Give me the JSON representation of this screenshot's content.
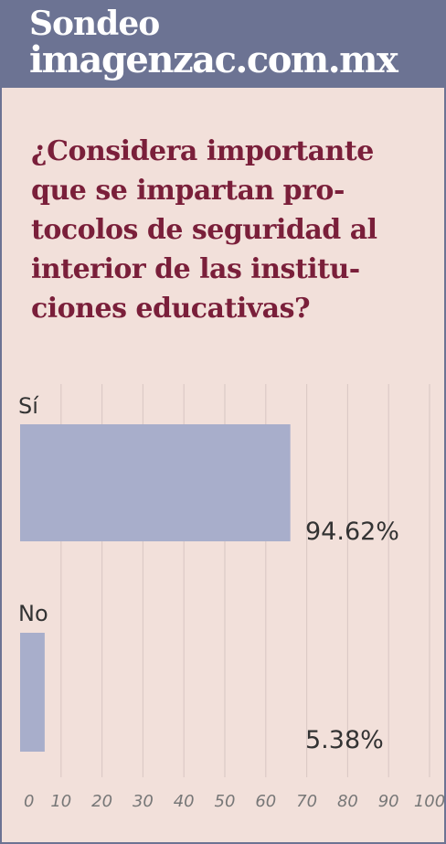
{
  "header": {
    "line1": "Sondeo",
    "line2": "imagenzac.com.mx"
  },
  "question_lines": [
    "¿Considera importante",
    "que se impartan pro-",
    "tocolos de seguridad al",
    "interior de las institu-",
    "ciones educativas?"
  ],
  "colors": {
    "header_bg": "#6c7393",
    "background": "#f2e0da",
    "question_text": "#7a1f3a",
    "bar": "#a8aecb",
    "grid": "#dccac6"
  },
  "chart_data": {
    "type": "bar",
    "orientation": "horizontal",
    "categories": [
      "Sí",
      "No"
    ],
    "values": [
      94.62,
      5.38
    ],
    "value_labels": [
      "94.62%",
      "5.38%"
    ],
    "drawn_lengths": [
      66,
      6
    ],
    "xlim": [
      0,
      100
    ],
    "xticks": [
      "0",
      "10",
      "20",
      "30",
      "40",
      "50",
      "60",
      "70",
      "80",
      "90",
      "100"
    ],
    "grid": true
  }
}
